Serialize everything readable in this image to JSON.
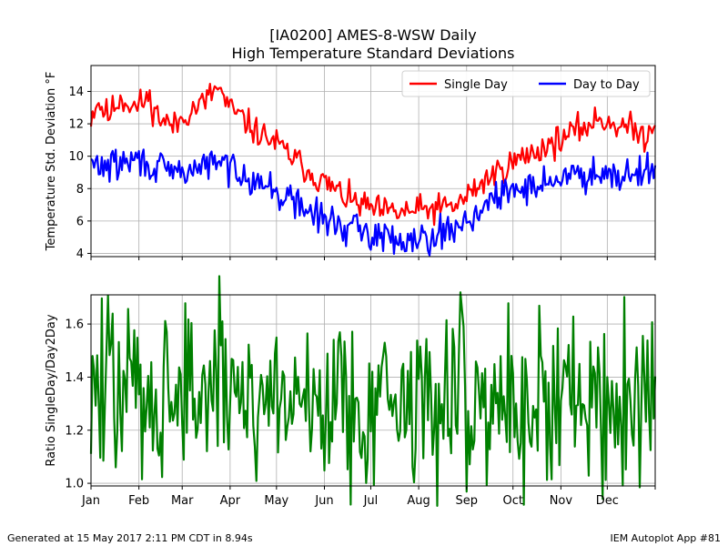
{
  "title_line1": "[IA0200] AMES-8-WSW Daily",
  "title_line2": "High Temperature Standard Deviations",
  "footer": {
    "left": "Generated at 15 May 2017 2:11 PM CDT in 8.94s",
    "right": "IEM Autoplot App #81"
  },
  "chart_data": [
    {
      "type": "line",
      "ylabel": "Temperature Std. Deviation °F",
      "ylim": [
        3.8,
        15.6
      ],
      "yticks": [
        4,
        6,
        8,
        10,
        12,
        14
      ],
      "xlim": [
        1,
        366
      ],
      "grid": true,
      "legend_position": "top-right",
      "legend_columns": 2,
      "x_ticks": [
        {
          "day": 1,
          "label": "Jan"
        },
        {
          "day": 32,
          "label": "Feb"
        },
        {
          "day": 60,
          "label": "Mar"
        },
        {
          "day": 91,
          "label": "Apr"
        },
        {
          "day": 121,
          "label": "May"
        },
        {
          "day": 152,
          "label": "Jun"
        },
        {
          "day": 182,
          "label": "Jul"
        },
        {
          "day": 213,
          "label": "Aug"
        },
        {
          "day": 244,
          "label": "Sep"
        },
        {
          "day": 274,
          "label": "Oct"
        },
        {
          "day": 305,
          "label": "Nov"
        },
        {
          "day": 335,
          "label": "Dec"
        }
      ],
      "show_tick_labels_x": false,
      "series": [
        {
          "name": "Single Day",
          "color": "#ff0000",
          "anchors": [
            [
              1,
              12.4
            ],
            [
              5,
              13.4
            ],
            [
              12,
              12.5
            ],
            [
              20,
              13.6
            ],
            [
              30,
              13.0
            ],
            [
              38,
              13.6
            ],
            [
              45,
              12.4
            ],
            [
              55,
              11.8
            ],
            [
              62,
              12.6
            ],
            [
              75,
              13.4
            ],
            [
              83,
              14.3
            ],
            [
              90,
              13.0
            ],
            [
              98,
              12.4
            ],
            [
              108,
              11.5
            ],
            [
              118,
              11.0
            ],
            [
              128,
              10.2
            ],
            [
              138,
              9.4
            ],
            [
              148,
              8.6
            ],
            [
              158,
              8.0
            ],
            [
              168,
              7.3
            ],
            [
              178,
              6.9
            ],
            [
              188,
              6.6
            ],
            [
              198,
              6.5
            ],
            [
              208,
              6.6
            ],
            [
              218,
              6.7
            ],
            [
              228,
              6.8
            ],
            [
              238,
              7.0
            ],
            [
              245,
              7.6
            ],
            [
              252,
              8.2
            ],
            [
              260,
              8.8
            ],
            [
              270,
              9.4
            ],
            [
              282,
              10.0
            ],
            [
              295,
              10.6
            ],
            [
              308,
              11.2
            ],
            [
              320,
              11.8
            ],
            [
              330,
              12.3
            ],
            [
              340,
              12.0
            ],
            [
              350,
              11.7
            ],
            [
              360,
              11.2
            ],
            [
              366,
              12.4
            ]
          ],
          "seed": 11,
          "noise": 0.9
        },
        {
          "name": "Day to Day",
          "color": "#0000ff",
          "anchors": [
            [
              1,
              9.5
            ],
            [
              10,
              9.4
            ],
            [
              20,
              9.5
            ],
            [
              30,
              9.8
            ],
            [
              40,
              9.4
            ],
            [
              50,
              9.0
            ],
            [
              60,
              9.0
            ],
            [
              70,
              9.3
            ],
            [
              80,
              9.6
            ],
            [
              90,
              9.4
            ],
            [
              100,
              9.0
            ],
            [
              110,
              8.4
            ],
            [
              120,
              7.8
            ],
            [
              130,
              7.3
            ],
            [
              140,
              6.7
            ],
            [
              150,
              6.2
            ],
            [
              160,
              5.8
            ],
            [
              170,
              5.5
            ],
            [
              180,
              5.3
            ],
            [
              190,
              5.0
            ],
            [
              200,
              4.9
            ],
            [
              210,
              5.0
            ],
            [
              220,
              5.1
            ],
            [
              230,
              5.3
            ],
            [
              240,
              5.8
            ],
            [
              250,
              6.5
            ],
            [
              262,
              7.3
            ],
            [
              275,
              7.9
            ],
            [
              290,
              8.3
            ],
            [
              305,
              8.6
            ],
            [
              320,
              8.9
            ],
            [
              335,
              9.1
            ],
            [
              350,
              8.9
            ],
            [
              360,
              9.1
            ],
            [
              366,
              9.6
            ]
          ],
          "seed": 29,
          "noise": 1.0
        }
      ]
    },
    {
      "type": "line",
      "ylabel": "Ratio SingleDay/Day2Day",
      "ylim": [
        0.99,
        1.71
      ],
      "yticks": [
        1.0,
        1.2,
        1.4,
        1.6
      ],
      "xlim": [
        1,
        366
      ],
      "grid": true,
      "x_ticks": [
        {
          "day": 1,
          "label": "Jan"
        },
        {
          "day": 32,
          "label": "Feb"
        },
        {
          "day": 60,
          "label": "Mar"
        },
        {
          "day": 91,
          "label": "Apr"
        },
        {
          "day": 121,
          "label": "May"
        },
        {
          "day": 152,
          "label": "Jun"
        },
        {
          "day": 182,
          "label": "Jul"
        },
        {
          "day": 213,
          "label": "Aug"
        },
        {
          "day": 244,
          "label": "Sep"
        },
        {
          "day": 274,
          "label": "Oct"
        },
        {
          "day": 305,
          "label": "Nov"
        },
        {
          "day": 335,
          "label": "Dec"
        }
      ],
      "show_tick_labels_x": true,
      "series": [
        {
          "color": "#008000",
          "anchors": [
            [
              1,
              1.35
            ],
            [
              30,
              1.36
            ],
            [
              60,
              1.34
            ],
            [
              90,
              1.36
            ],
            [
              120,
              1.33
            ],
            [
              150,
              1.32
            ],
            [
              180,
              1.31
            ],
            [
              210,
              1.3
            ],
            [
              240,
              1.33
            ],
            [
              270,
              1.31
            ],
            [
              300,
              1.32
            ],
            [
              330,
              1.33
            ],
            [
              366,
              1.33
            ]
          ],
          "seed": 47,
          "noise": 0.34
        }
      ]
    }
  ]
}
